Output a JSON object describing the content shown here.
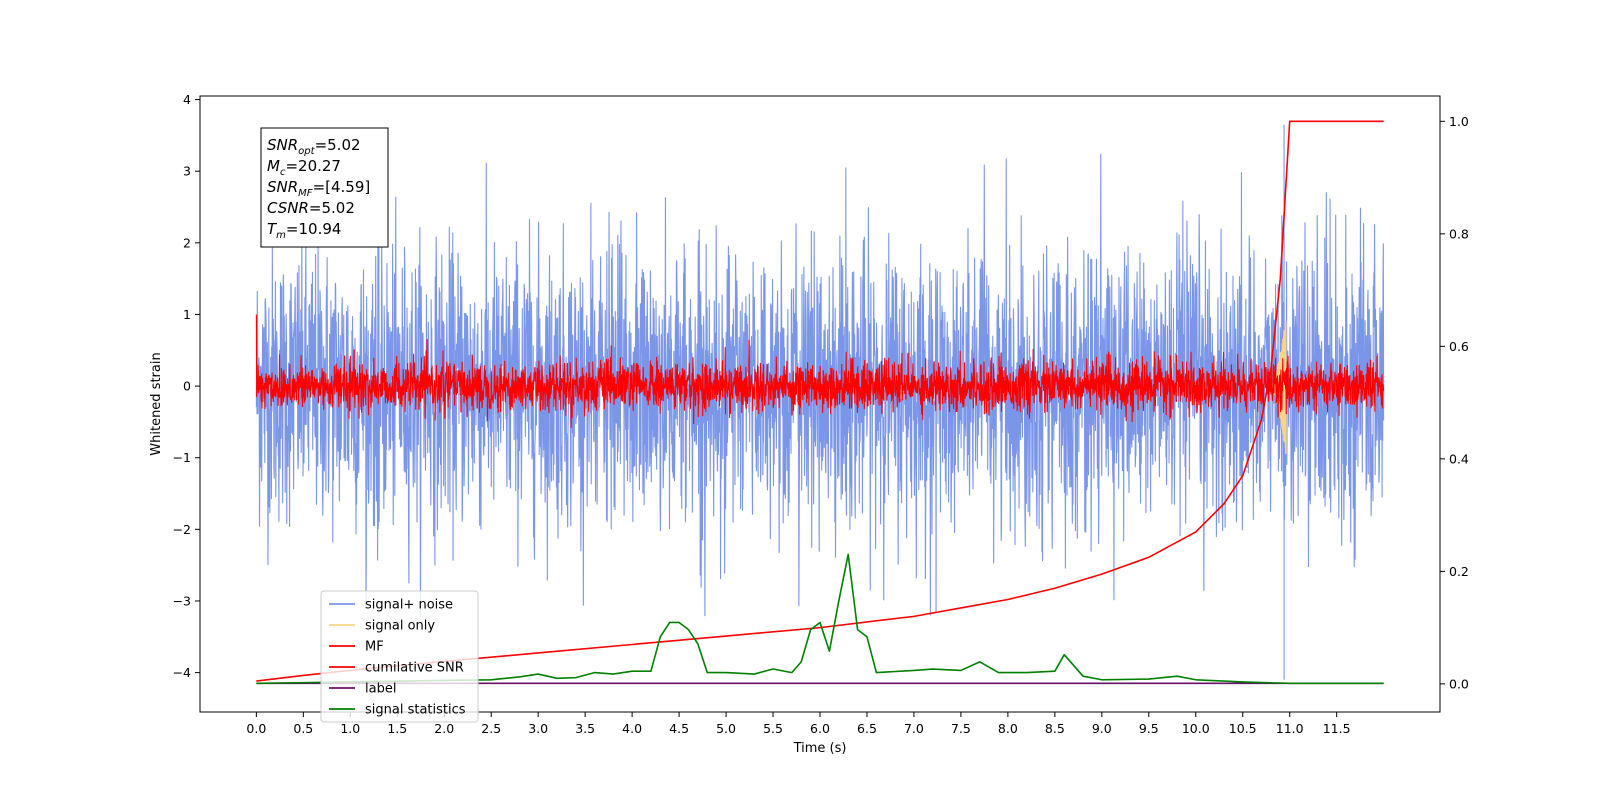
{
  "chart_data": {
    "type": "line",
    "xlabel": "Time (s)",
    "ylabel": "Whitened strain",
    "xlim": [
      -0.6,
      12.6
    ],
    "ylim": [
      -4.55,
      4.05
    ],
    "y2lim": [
      -0.05,
      1.045
    ],
    "grid": false,
    "legend_placement": "lower-left",
    "x_ticks": [
      0.0,
      0.5,
      1.0,
      1.5,
      2.0,
      2.5,
      3.0,
      3.5,
      4.0,
      4.5,
      5.0,
      5.5,
      6.0,
      6.5,
      7.0,
      7.5,
      8.0,
      8.5,
      9.0,
      9.5,
      10.0,
      10.5,
      11.0,
      11.5
    ],
    "x_tick_labels": [
      "0.0",
      "0.5",
      "1.0",
      "1.5",
      "2.0",
      "2.5",
      "3.0",
      "3.5",
      "4.0",
      "4.5",
      "5.0",
      "5.5",
      "6.0",
      "6.5",
      "7.0",
      "7.5",
      "8.0",
      "8.5",
      "9.0",
      "9.5",
      "10.0",
      "10.5",
      "11.0",
      "11.5"
    ],
    "y_ticks": [
      -4,
      -3,
      -2,
      -1,
      0,
      1,
      2,
      3,
      4
    ],
    "y_tick_labels": [
      "−4",
      "−3",
      "−2",
      "−1",
      "0",
      "1",
      "2",
      "3",
      "4"
    ],
    "y2_ticks": [
      0.0,
      0.2,
      0.4,
      0.6,
      0.8,
      1.0
    ],
    "y2_tick_labels": [
      "0.0",
      "0.2",
      "0.4",
      "0.6",
      "0.8",
      "1.0"
    ],
    "annotation": {
      "lines": [
        {
          "base": "SNR",
          "sub": "opt",
          "value": "=5.02"
        },
        {
          "base": "M",
          "sub": "c",
          "value": "=20.27"
        },
        {
          "base": "SNR",
          "sub": "MF",
          "value": "=[4.59]"
        },
        {
          "base": "CSNR",
          "sub": "",
          "value": "=5.02"
        },
        {
          "base": "T",
          "sub": "m",
          "value": "=10.94"
        }
      ]
    },
    "series": [
      {
        "name": "signal+ noise",
        "color": "#7b96e8",
        "axis": "left",
        "style": "noise",
        "x_range": [
          0.0,
          12.0
        ],
        "amplitude_std": 0.95,
        "spike": {
          "x": 10.94,
          "y_min": -4.1,
          "y_max": 3.65
        }
      },
      {
        "name": "signal only",
        "color": "#f5d58a",
        "axis": "left",
        "style": "chirp",
        "x_range": [
          10.8,
          10.96
        ],
        "peak_amplitude": 0.95
      },
      {
        "name": "MF",
        "color": "#ff0000",
        "axis": "left",
        "style": "noise",
        "x_range": [
          0.0,
          12.0
        ],
        "amplitude_std": 0.17,
        "start_value": 1.0
      },
      {
        "name": "cumilative SNR",
        "color": "#ff0000",
        "axis": "right",
        "style": "line",
        "x": [
          0.0,
          0.5,
          1.0,
          2.0,
          3.0,
          4.0,
          5.0,
          6.0,
          7.0,
          7.5,
          8.0,
          8.5,
          9.0,
          9.5,
          10.0,
          10.3,
          10.5,
          10.7,
          10.8,
          10.9,
          10.95,
          11.0,
          12.0
        ],
        "values": [
          0.005,
          0.015,
          0.024,
          0.04,
          0.055,
          0.07,
          0.085,
          0.1,
          0.12,
          0.135,
          0.15,
          0.17,
          0.195,
          0.225,
          0.27,
          0.32,
          0.37,
          0.47,
          0.56,
          0.72,
          0.86,
          1.0,
          1.0
        ]
      },
      {
        "name": "label",
        "color": "#6a0f6a",
        "axis": "left",
        "style": "line",
        "x": [
          0.0,
          12.0
        ],
        "values": [
          -4.15,
          -4.15
        ]
      },
      {
        "name": "signal statistics",
        "color": "#008000",
        "axis": "left",
        "style": "line",
        "x": [
          0.0,
          0.5,
          1.0,
          1.5,
          2.0,
          2.5,
          2.8,
          3.0,
          3.2,
          3.4,
          3.6,
          3.8,
          4.0,
          4.2,
          4.3,
          4.4,
          4.5,
          4.6,
          4.7,
          4.8,
          5.0,
          5.3,
          5.5,
          5.7,
          5.8,
          5.9,
          6.0,
          6.1,
          6.2,
          6.3,
          6.4,
          6.5,
          6.6,
          7.0,
          7.2,
          7.5,
          7.7,
          7.9,
          8.2,
          8.5,
          8.6,
          8.8,
          9.0,
          9.5,
          9.8,
          10.0,
          10.5,
          11.0,
          12.0
        ],
        "values": [
          -4.15,
          -4.14,
          -4.13,
          -4.12,
          -4.11,
          -4.1,
          -4.06,
          -4.02,
          -4.08,
          -4.07,
          -4.0,
          -4.02,
          -3.98,
          -3.98,
          -3.5,
          -3.3,
          -3.3,
          -3.4,
          -3.6,
          -4.0,
          -4.0,
          -4.02,
          -3.95,
          -4.0,
          -3.85,
          -3.4,
          -3.3,
          -3.7,
          -3.0,
          -2.35,
          -3.4,
          -3.5,
          -4.0,
          -3.97,
          -3.95,
          -3.97,
          -3.85,
          -4.0,
          -4.0,
          -3.98,
          -3.75,
          -4.05,
          -4.1,
          -4.09,
          -4.05,
          -4.1,
          -4.13,
          -4.15,
          -4.15
        ]
      }
    ]
  }
}
